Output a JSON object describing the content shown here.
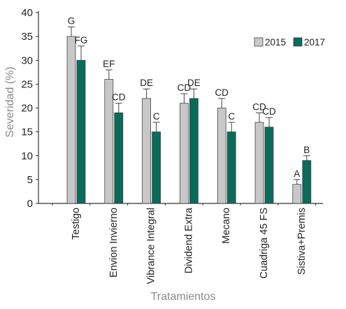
{
  "chart_data": {
    "type": "bar",
    "title": "",
    "xlabel": "Tratamientos",
    "ylabel": "Severidad (%)",
    "ylim": [
      0,
      40
    ],
    "yticks": [
      0,
      5,
      10,
      15,
      20,
      25,
      30,
      35,
      40
    ],
    "grid": false,
    "legend_position": "top-right",
    "categories": [
      "Testigo",
      "Envion Invierno",
      "Vibrance Integral",
      "Dividend Extra",
      "Mecano",
      "Cuadriga 45 FS",
      "Sistiva+Premis"
    ],
    "series": [
      {
        "name": "2015",
        "color": "#c8c8c8",
        "values": [
          35,
          26,
          22,
          21,
          20,
          17,
          4
        ],
        "errors": [
          2,
          2,
          2,
          2,
          2,
          2,
          1
        ],
        "letters": [
          "G",
          "EF",
          "DE",
          "CD",
          "CD",
          "CD",
          "A"
        ]
      },
      {
        "name": "2017",
        "color": "#0a6b5a",
        "values": [
          30,
          19,
          15,
          22,
          15,
          16,
          9
        ],
        "errors": [
          3,
          2,
          2,
          2,
          2,
          2,
          1
        ],
        "letters": [
          "FG",
          "CD",
          "C",
          "DE",
          "C",
          "CD",
          "B"
        ]
      }
    ]
  }
}
